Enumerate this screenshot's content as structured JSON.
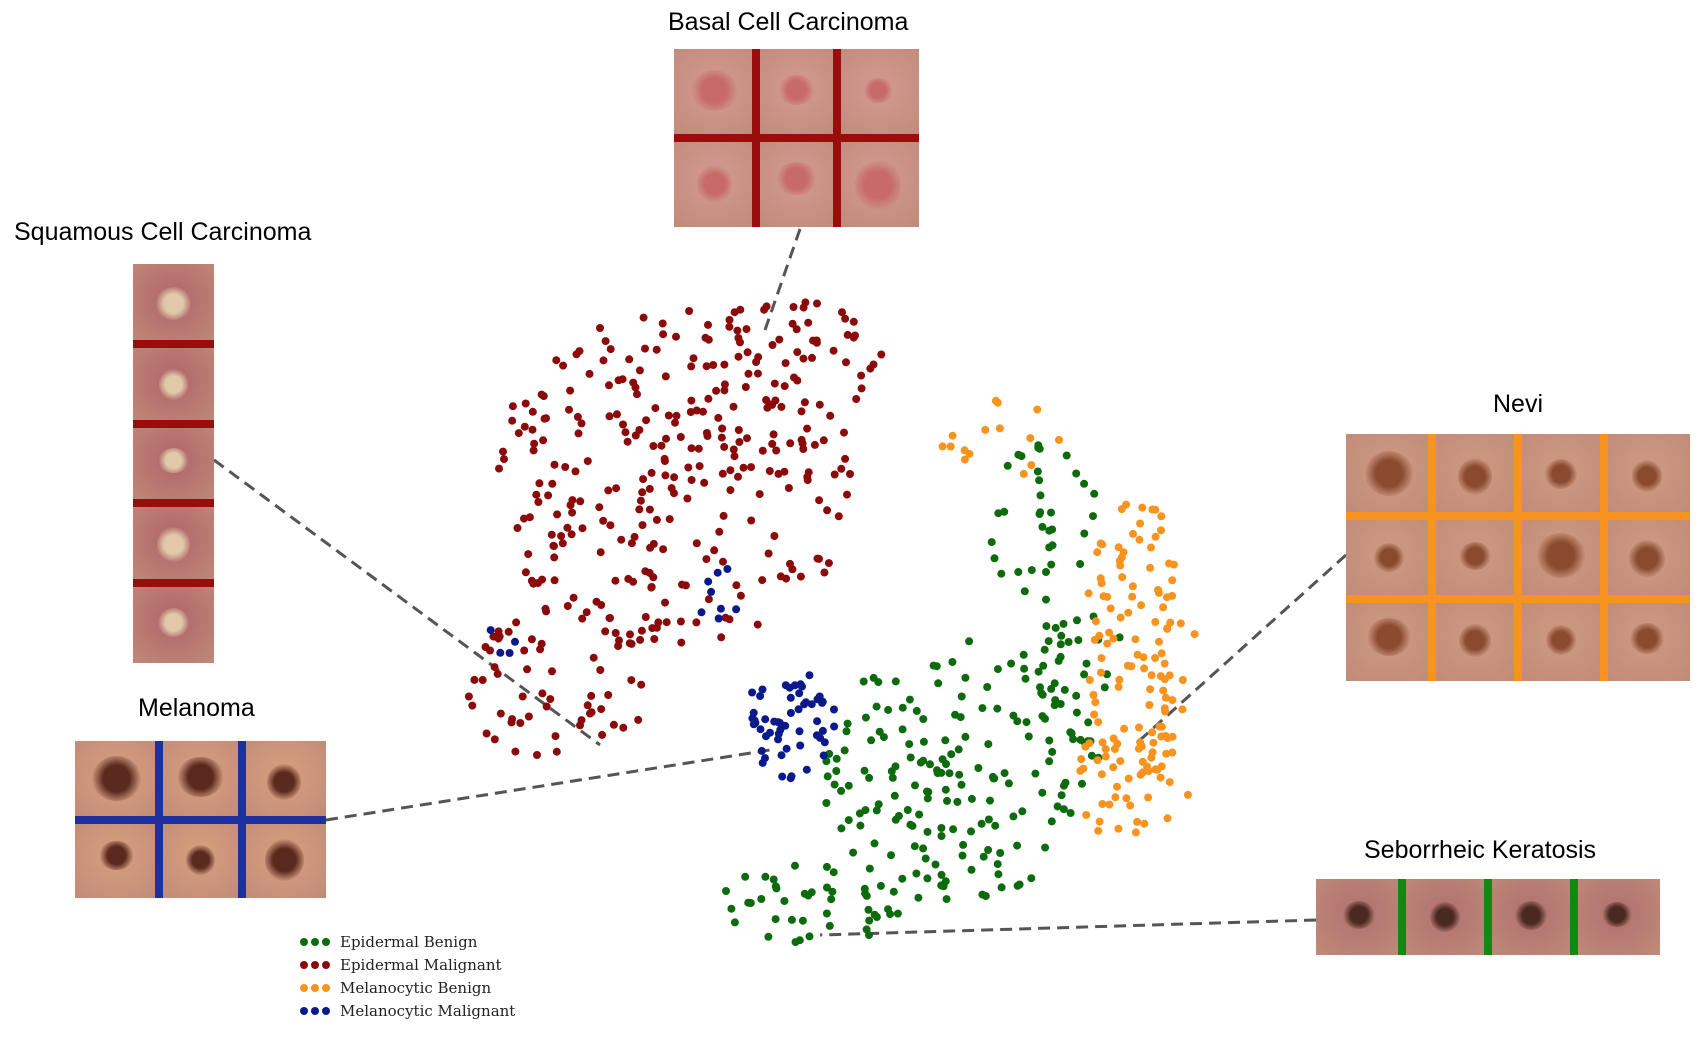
{
  "chart_data": {
    "type": "scatter",
    "title": "",
    "xlabel": "",
    "ylabel": "",
    "grid": false,
    "axes_visible": false,
    "legend_position": "bottom-left",
    "series": [
      {
        "name": "Epidermal Benign",
        "color": "#0d6b0d"
      },
      {
        "name": "Epidermal Malignant",
        "color": "#8b0a0a"
      },
      {
        "name": "Melanocytic Benign",
        "color": "#f7931e"
      },
      {
        "name": "Melanocytic Malignant",
        "color": "#0a1a8c"
      }
    ]
  },
  "example_panels": [
    {
      "label": "Basal Cell Carcinoma",
      "color": "#9b0d0d",
      "rows": 2,
      "cols": 3,
      "skin": "#d49a94",
      "lesion": "#c86a6a"
    },
    {
      "label": "Squamous Cell Carcinoma",
      "color": "#9b0d0d",
      "rows": 5,
      "cols": 1,
      "skin": "#b0646a",
      "lesion": "#e0c8a8"
    },
    {
      "label": "Melanoma",
      "color": "#1e2fa0",
      "rows": 2,
      "cols": 3,
      "skin": "#d9a07e",
      "lesion": "#5a2a1e"
    },
    {
      "label": "Nevi",
      "color": "#f7931e",
      "rows": 3,
      "cols": 4,
      "skin": "#cf9a80",
      "lesion": "#8a4a30"
    },
    {
      "label": "Seborrheic Keratosis",
      "color": "#118a11",
      "rows": 1,
      "cols": 4,
      "skin": "#b07070",
      "lesion": "#4a2a20"
    }
  ]
}
